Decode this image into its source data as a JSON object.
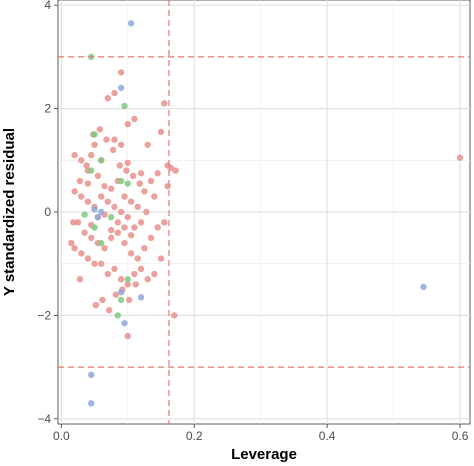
{
  "chart_data": {
    "type": "scatter",
    "title": "",
    "xlabel": "Leverage",
    "ylabel": "Y standardized residual",
    "xlim": [
      -0.005,
      0.615
    ],
    "ylim": [
      -4.1,
      4.1
    ],
    "x_ticks": [
      0.0,
      0.2,
      0.4,
      0.6
    ],
    "x_tick_labels": [
      "0.0",
      "0.2",
      "0.4",
      "0.6"
    ],
    "y_ticks": [
      -4,
      -2,
      0,
      2,
      4
    ],
    "y_tick_labels": [
      "−4",
      "−2",
      "0",
      "2",
      "4"
    ],
    "grid": true,
    "legend": "none",
    "reference_lines": {
      "horizontal": [
        3,
        -3
      ],
      "vertical": [
        0.162
      ],
      "style": "dashed",
      "color": "#e07b77"
    },
    "colors": {
      "red": "#e8908c",
      "green": "#7fc97f",
      "blue": "#8fa8d8"
    },
    "points": {
      "red": [
        [
          0.6,
          1.05
        ],
        [
          0.1,
          1.7
        ],
        [
          0.09,
          1.3
        ],
        [
          0.13,
          1.3
        ],
        [
          0.15,
          1.55
        ],
        [
          0.155,
          2.1
        ],
        [
          0.16,
          0.9
        ],
        [
          0.165,
          0.85
        ],
        [
          0.172,
          0.8
        ],
        [
          0.16,
          0.5
        ],
        [
          0.17,
          -2.0
        ],
        [
          0.1,
          -2.4
        ],
        [
          0.07,
          2.2
        ],
        [
          0.11,
          1.8
        ],
        [
          0.08,
          1.4
        ],
        [
          0.05,
          1.3
        ],
        [
          0.045,
          1.1
        ],
        [
          0.06,
          1.0
        ],
        [
          0.03,
          1.0
        ],
        [
          0.02,
          1.1
        ],
        [
          0.04,
          0.8
        ],
        [
          0.055,
          0.7
        ],
        [
          0.065,
          0.5
        ],
        [
          0.075,
          0.45
        ],
        [
          0.085,
          0.6
        ],
        [
          0.095,
          0.3
        ],
        [
          0.105,
          0.2
        ],
        [
          0.115,
          0.1
        ],
        [
          0.125,
          0.4
        ],
        [
          0.135,
          0.6
        ],
        [
          0.145,
          0.75
        ],
        [
          0.14,
          0.3
        ],
        [
          0.128,
          0.0
        ],
        [
          0.12,
          -0.2
        ],
        [
          0.11,
          -0.3
        ],
        [
          0.1,
          -0.1
        ],
        [
          0.09,
          0.0
        ],
        [
          0.08,
          0.1
        ],
        [
          0.07,
          0.2
        ],
        [
          0.06,
          0.3
        ],
        [
          0.05,
          0.1
        ],
        [
          0.04,
          0.2
        ],
        [
          0.03,
          0.3
        ],
        [
          0.02,
          0.4
        ],
        [
          0.025,
          -0.2
        ],
        [
          0.035,
          -0.4
        ],
        [
          0.045,
          -0.5
        ],
        [
          0.055,
          -0.6
        ],
        [
          0.065,
          -0.7
        ],
        [
          0.075,
          -0.5
        ],
        [
          0.085,
          -0.4
        ],
        [
          0.095,
          -0.6
        ],
        [
          0.105,
          -0.8
        ],
        [
          0.115,
          -0.9
        ],
        [
          0.125,
          -0.7
        ],
        [
          0.135,
          -0.5
        ],
        [
          0.145,
          -0.3
        ],
        [
          0.155,
          -0.2
        ],
        [
          0.15,
          -0.9
        ],
        [
          0.14,
          -1.2
        ],
        [
          0.13,
          -1.3
        ],
        [
          0.12,
          -1.1
        ],
        [
          0.11,
          -1.2
        ],
        [
          0.1,
          -1.4
        ],
        [
          0.09,
          -1.3
        ],
        [
          0.08,
          -1.1
        ],
        [
          0.07,
          -1.2
        ],
        [
          0.06,
          -1.0
        ],
        [
          0.05,
          -1.0
        ],
        [
          0.04,
          -0.9
        ],
        [
          0.03,
          -0.8
        ],
        [
          0.02,
          -0.7
        ],
        [
          0.015,
          -0.6
        ],
        [
          0.018,
          -0.2
        ],
        [
          0.028,
          0.6
        ],
        [
          0.038,
          0.9
        ],
        [
          0.048,
          1.5
        ],
        [
          0.058,
          1.6
        ],
        [
          0.068,
          1.4
        ],
        [
          0.078,
          1.2
        ],
        [
          0.088,
          0.9
        ],
        [
          0.098,
          0.8
        ],
        [
          0.108,
          0.7
        ],
        [
          0.118,
          0.55
        ],
        [
          0.052,
          -1.8
        ],
        [
          0.062,
          -1.7
        ],
        [
          0.072,
          -1.9
        ],
        [
          0.082,
          -1.6
        ],
        [
          0.092,
          -1.5
        ],
        [
          0.102,
          -1.7
        ],
        [
          0.112,
          -1.4
        ],
        [
          0.045,
          -0.25
        ],
        [
          0.055,
          -0.1
        ],
        [
          0.065,
          -0.05
        ],
        [
          0.075,
          -0.35
        ],
        [
          0.085,
          -0.2
        ],
        [
          0.095,
          -0.3
        ],
        [
          0.105,
          -0.45
        ],
        [
          0.04,
          0.55
        ],
        [
          0.028,
          -1.3
        ],
        [
          0.09,
          2.7
        ],
        [
          0.08,
          2.3
        ],
        [
          0.1,
          0.95
        ],
        [
          0.12,
          0.75
        ]
      ],
      "green": [
        [
          0.045,
          3.0
        ],
        [
          0.095,
          2.05
        ],
        [
          0.05,
          1.5
        ],
        [
          0.045,
          0.8
        ],
        [
          0.06,
          1.0
        ],
        [
          0.09,
          0.6
        ],
        [
          0.1,
          0.55
        ],
        [
          0.035,
          -0.05
        ],
        [
          0.05,
          -0.3
        ],
        [
          0.06,
          -0.6
        ],
        [
          0.09,
          -1.7
        ],
        [
          0.075,
          -0.1
        ],
        [
          0.1,
          -1.3
        ],
        [
          0.085,
          -2.0
        ]
      ],
      "blue": [
        [
          0.105,
          3.65
        ],
        [
          0.09,
          2.4
        ],
        [
          0.06,
          0.0
        ],
        [
          0.05,
          0.05
        ],
        [
          0.055,
          -0.1
        ],
        [
          0.095,
          -2.15
        ],
        [
          0.12,
          -1.65
        ],
        [
          0.09,
          -1.55
        ],
        [
          0.045,
          -3.15
        ],
        [
          0.045,
          -3.7
        ],
        [
          0.545,
          -1.45
        ]
      ]
    }
  }
}
